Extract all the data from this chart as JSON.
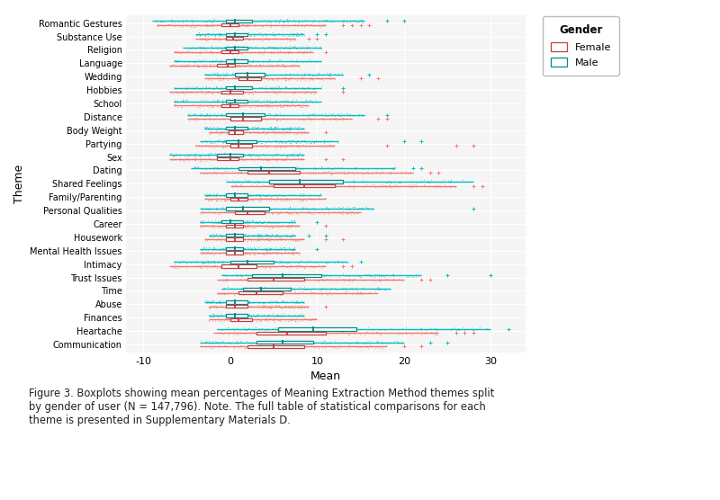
{
  "themes": [
    "Romantic Gestures",
    "Substance Use",
    "Religion",
    "Language",
    "Wedding",
    "Hobbies",
    "School",
    "Distance",
    "Body Weight",
    "Partying",
    "Sex",
    "Dating",
    "Shared Feelings",
    "Family/Parenting",
    "Personal Qualities",
    "Career",
    "Housework",
    "Mental Health Issues",
    "Intimacy",
    "Trust Issues",
    "Time",
    "Abuse",
    "Finances",
    "Heartache",
    "Communication"
  ],
  "female": {
    "Romantic Gestures": {
      "q1": -1.0,
      "med": 0.0,
      "q3": 1.0,
      "whislo": -8.5,
      "whishi": 11.0,
      "fliers_high": [
        13,
        14,
        15,
        16
      ],
      "fliers_low": []
    },
    "Substance Use": {
      "q1": -0.5,
      "med": 0.3,
      "q3": 1.5,
      "whislo": -4.0,
      "whishi": 7.5,
      "fliers_high": [
        9,
        10
      ],
      "fliers_low": []
    },
    "Religion": {
      "q1": -1.0,
      "med": 0.0,
      "q3": 1.0,
      "whislo": -6.5,
      "whishi": 9.5,
      "fliers_high": [
        11
      ],
      "fliers_low": []
    },
    "Language": {
      "q1": -1.5,
      "med": -0.3,
      "q3": 0.5,
      "whislo": -7.0,
      "whishi": 8.0,
      "fliers_high": [],
      "fliers_low": []
    },
    "Wedding": {
      "q1": 1.0,
      "med": 2.0,
      "q3": 3.5,
      "whislo": -3.0,
      "whishi": 12.0,
      "fliers_high": [
        15,
        17
      ],
      "fliers_low": []
    },
    "Hobbies": {
      "q1": -1.0,
      "med": 0.0,
      "q3": 1.5,
      "whislo": -7.0,
      "whishi": 10.0,
      "fliers_high": [
        13
      ],
      "fliers_low": []
    },
    "School": {
      "q1": -1.0,
      "med": 0.0,
      "q3": 1.0,
      "whislo": -6.5,
      "whishi": 9.0,
      "fliers_high": [],
      "fliers_low": []
    },
    "Distance": {
      "q1": 0.0,
      "med": 1.5,
      "q3": 3.5,
      "whislo": -5.0,
      "whishi": 14.0,
      "fliers_high": [
        17,
        18
      ],
      "fliers_low": []
    },
    "Body Weight": {
      "q1": -0.2,
      "med": 0.5,
      "q3": 1.5,
      "whislo": -2.5,
      "whishi": 9.0,
      "fliers_high": [
        11
      ],
      "fliers_low": []
    },
    "Partying": {
      "q1": 0.0,
      "med": 1.0,
      "q3": 2.5,
      "whislo": -4.0,
      "whishi": 12.0,
      "fliers_high": [
        18,
        26,
        28
      ],
      "fliers_low": []
    },
    "Sex": {
      "q1": -1.5,
      "med": 0.0,
      "q3": 1.0,
      "whislo": -7.0,
      "whishi": 8.5,
      "fliers_high": [
        11,
        13
      ],
      "fliers_low": []
    },
    "Dating": {
      "q1": 2.0,
      "med": 4.5,
      "q3": 8.0,
      "whislo": -3.5,
      "whishi": 21.0,
      "fliers_high": [
        23,
        24
      ],
      "fliers_low": []
    },
    "Shared Feelings": {
      "q1": 5.0,
      "med": 8.5,
      "q3": 12.0,
      "whislo": 0.0,
      "whishi": 26.0,
      "fliers_high": [
        28,
        29
      ],
      "fliers_low": []
    },
    "Family/Parenting": {
      "q1": 0.0,
      "med": 1.0,
      "q3": 2.0,
      "whislo": -3.0,
      "whishi": 11.0,
      "fliers_high": [],
      "fliers_low": []
    },
    "Personal Qualities": {
      "q1": 0.5,
      "med": 2.0,
      "q3": 4.0,
      "whislo": -3.5,
      "whishi": 15.0,
      "fliers_high": [],
      "fliers_low": []
    },
    "Career": {
      "q1": -0.5,
      "med": 0.5,
      "q3": 1.5,
      "whislo": -3.5,
      "whishi": 8.0,
      "fliers_high": [
        11
      ],
      "fliers_low": []
    },
    "Housework": {
      "q1": -0.5,
      "med": 0.5,
      "q3": 1.5,
      "whislo": -3.0,
      "whishi": 8.5,
      "fliers_high": [
        11,
        13
      ],
      "fliers_low": []
    },
    "Mental Health Issues": {
      "q1": -0.5,
      "med": 0.5,
      "q3": 1.5,
      "whislo": -3.5,
      "whishi": 8.0,
      "fliers_high": [],
      "fliers_low": []
    },
    "Intimacy": {
      "q1": -1.0,
      "med": 1.0,
      "q3": 3.0,
      "whislo": -7.0,
      "whishi": 11.0,
      "fliers_high": [
        13,
        14
      ],
      "fliers_low": []
    },
    "Trust Issues": {
      "q1": 2.0,
      "med": 5.0,
      "q3": 8.5,
      "whislo": -1.5,
      "whishi": 20.0,
      "fliers_high": [
        22,
        23
      ],
      "fliers_low": []
    },
    "Time": {
      "q1": 1.0,
      "med": 3.0,
      "q3": 6.0,
      "whislo": -1.5,
      "whishi": 17.0,
      "fliers_high": [],
      "fliers_low": []
    },
    "Abuse": {
      "q1": -0.5,
      "med": 0.5,
      "q3": 2.0,
      "whislo": -2.5,
      "whishi": 9.0,
      "fliers_high": [
        11
      ],
      "fliers_low": []
    },
    "Finances": {
      "q1": 0.0,
      "med": 1.0,
      "q3": 2.5,
      "whislo": -2.5,
      "whishi": 10.0,
      "fliers_high": [],
      "fliers_low": []
    },
    "Heartache": {
      "q1": 3.0,
      "med": 6.5,
      "q3": 11.0,
      "whislo": -2.0,
      "whishi": 24.0,
      "fliers_high": [
        26,
        27,
        28
      ],
      "fliers_low": []
    },
    "Communication": {
      "q1": 2.0,
      "med": 5.0,
      "q3": 8.5,
      "whislo": -3.5,
      "whishi": 18.0,
      "fliers_high": [
        20,
        22
      ],
      "fliers_low": []
    }
  },
  "male": {
    "Romantic Gestures": {
      "q1": -0.5,
      "med": 0.5,
      "q3": 2.5,
      "whislo": -9.0,
      "whishi": 15.5,
      "fliers_high": [
        18,
        20
      ],
      "fliers_low": []
    },
    "Substance Use": {
      "q1": -0.5,
      "med": 0.5,
      "q3": 2.0,
      "whislo": -4.0,
      "whishi": 8.5,
      "fliers_high": [
        10,
        11
      ],
      "fliers_low": []
    },
    "Religion": {
      "q1": -0.5,
      "med": 0.5,
      "q3": 2.0,
      "whislo": -5.5,
      "whishi": 10.5,
      "fliers_high": [],
      "fliers_low": []
    },
    "Language": {
      "q1": -0.5,
      "med": 0.5,
      "q3": 2.0,
      "whislo": -6.5,
      "whishi": 10.5,
      "fliers_high": [],
      "fliers_low": []
    },
    "Wedding": {
      "q1": 0.5,
      "med": 2.0,
      "q3": 4.0,
      "whislo": -3.0,
      "whishi": 13.0,
      "fliers_high": [
        16
      ],
      "fliers_low": []
    },
    "Hobbies": {
      "q1": -0.5,
      "med": 0.5,
      "q3": 2.5,
      "whislo": -6.5,
      "whishi": 10.5,
      "fliers_high": [
        13
      ],
      "fliers_low": []
    },
    "School": {
      "q1": -0.5,
      "med": 0.5,
      "q3": 2.0,
      "whislo": -6.5,
      "whishi": 10.5,
      "fliers_high": [],
      "fliers_low": []
    },
    "Distance": {
      "q1": -0.5,
      "med": 1.5,
      "q3": 4.0,
      "whislo": -5.0,
      "whishi": 15.5,
      "fliers_high": [
        18
      ],
      "fliers_low": []
    },
    "Body Weight": {
      "q1": -0.5,
      "med": 0.5,
      "q3": 2.0,
      "whislo": -3.0,
      "whishi": 8.5,
      "fliers_high": [],
      "fliers_low": []
    },
    "Partying": {
      "q1": -0.5,
      "med": 1.0,
      "q3": 3.0,
      "whislo": -3.5,
      "whishi": 12.5,
      "fliers_high": [
        20,
        22
      ],
      "fliers_low": []
    },
    "Sex": {
      "q1": -1.5,
      "med": 0.0,
      "q3": 1.5,
      "whislo": -7.0,
      "whishi": 8.5,
      "fliers_high": [],
      "fliers_low": []
    },
    "Dating": {
      "q1": 1.0,
      "med": 3.5,
      "q3": 7.5,
      "whislo": -4.5,
      "whishi": 19.0,
      "fliers_high": [
        21,
        22
      ],
      "fliers_low": []
    },
    "Shared Feelings": {
      "q1": 4.5,
      "med": 8.0,
      "q3": 13.0,
      "whislo": -0.5,
      "whishi": 28.0,
      "fliers_high": [],
      "fliers_low": []
    },
    "Family/Parenting": {
      "q1": -0.5,
      "med": 0.5,
      "q3": 2.0,
      "whislo": -3.0,
      "whishi": 10.5,
      "fliers_high": [],
      "fliers_low": []
    },
    "Personal Qualities": {
      "q1": -0.5,
      "med": 1.5,
      "q3": 4.5,
      "whislo": -3.5,
      "whishi": 16.5,
      "fliers_high": [
        28
      ],
      "fliers_low": []
    },
    "Career": {
      "q1": -1.0,
      "med": 0.0,
      "q3": 1.5,
      "whislo": -3.5,
      "whishi": 7.5,
      "fliers_high": [
        10
      ],
      "fliers_low": []
    },
    "Housework": {
      "q1": -0.5,
      "med": 0.5,
      "q3": 1.5,
      "whislo": -2.5,
      "whishi": 7.5,
      "fliers_high": [
        9,
        11
      ],
      "fliers_low": []
    },
    "Mental Health Issues": {
      "q1": -0.5,
      "med": 0.5,
      "q3": 1.5,
      "whislo": -3.5,
      "whishi": 7.5,
      "fliers_high": [
        10
      ],
      "fliers_low": []
    },
    "Intimacy": {
      "q1": 0.0,
      "med": 2.0,
      "q3": 5.0,
      "whislo": -6.5,
      "whishi": 13.5,
      "fliers_high": [
        15
      ],
      "fliers_low": []
    },
    "Trust Issues": {
      "q1": 2.5,
      "med": 6.0,
      "q3": 10.5,
      "whislo": -1.0,
      "whishi": 22.0,
      "fliers_high": [
        25,
        30
      ],
      "fliers_low": []
    },
    "Time": {
      "q1": 1.5,
      "med": 3.5,
      "q3": 7.0,
      "whislo": -1.0,
      "whishi": 18.5,
      "fliers_high": [],
      "fliers_low": []
    },
    "Abuse": {
      "q1": -0.5,
      "med": 0.5,
      "q3": 2.0,
      "whislo": -3.0,
      "whishi": 8.5,
      "fliers_high": [],
      "fliers_low": []
    },
    "Finances": {
      "q1": -0.5,
      "med": 0.5,
      "q3": 2.0,
      "whislo": -2.5,
      "whishi": 8.5,
      "fliers_high": [],
      "fliers_low": []
    },
    "Heartache": {
      "q1": 5.5,
      "med": 9.5,
      "q3": 14.5,
      "whislo": -1.5,
      "whishi": 30.0,
      "fliers_high": [
        32
      ],
      "fliers_low": []
    },
    "Communication": {
      "q1": 3.0,
      "med": 6.0,
      "q3": 9.5,
      "whislo": -3.5,
      "whishi": 20.0,
      "fliers_high": [
        23,
        25
      ],
      "fliers_low": []
    }
  },
  "female_color": "#F8766D",
  "male_color": "#00BFC4",
  "female_edge": "#C04040",
  "male_edge": "#008B8B",
  "xlabel": "Mean",
  "ylabel": "Theme",
  "legend_title": "Gender",
  "xlim": [
    -12,
    34
  ],
  "xticks": [
    -10,
    0,
    10,
    20,
    30
  ],
  "caption": "Figure 3. Boxplots showing mean percentages of Meaning Extraction Method themes split\nby gender of user (N = 147,796). Note. The full table of statistical comparisons for each\ntheme is presented in Supplementary Materials D.",
  "background": "#FFFFFF",
  "panel_bg": "#F5F5F5",
  "grid_color": "#FFFFFF"
}
